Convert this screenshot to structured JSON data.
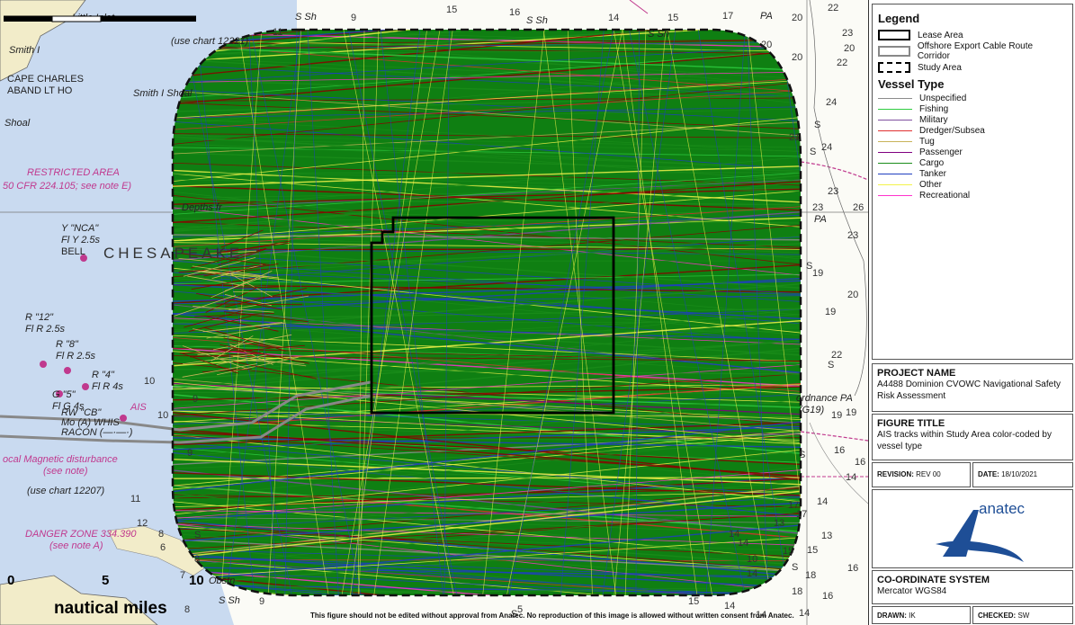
{
  "map": {
    "place_labels": [
      {
        "text": "Little Inlet",
        "cls": "it"
      },
      {
        "text": "Smith I",
        "cls": "it"
      },
      {
        "text": "(use chart 12221)",
        "cls": "it"
      },
      {
        "text": "CAPE CHARLES",
        "cls": ""
      },
      {
        "text": "ABAND LT HO",
        "cls": ""
      },
      {
        "text": "Smith I Shoal",
        "cls": "it"
      },
      {
        "text": "Shoal",
        "cls": "it"
      },
      {
        "text": "RESTRICTED AREA",
        "cls": "mag"
      },
      {
        "text": "50 CFR 224.105; see note E)",
        "cls": "mag"
      },
      {
        "text": "Y \"NCA\"",
        "cls": "it"
      },
      {
        "text": "Fl Y 2.5s",
        "cls": "it"
      },
      {
        "text": "BELL",
        "cls": ""
      },
      {
        "text": "CHESAPEAKE",
        "cls": "big"
      },
      {
        "text": "R \"12\"",
        "cls": "it"
      },
      {
        "text": "Fl R 2.5s",
        "cls": "it"
      },
      {
        "text": "R \"8\"",
        "cls": "it"
      },
      {
        "text": "Fl R 2.5s",
        "cls": "it"
      },
      {
        "text": "R \"4\"",
        "cls": "it"
      },
      {
        "text": "Fl R 4s",
        "cls": "it"
      },
      {
        "text": "G \"5\"",
        "cls": "it"
      },
      {
        "text": "Fl G 4s",
        "cls": "it"
      },
      {
        "text": "RW \"CB\"",
        "cls": "it"
      },
      {
        "text": "Mo (A) WHIS",
        "cls": "it"
      },
      {
        "text": "RACON (—·—·)",
        "cls": "it"
      },
      {
        "text": "AIS",
        "cls": "mag"
      },
      {
        "text": "ocal Magnetic disturbance",
        "cls": "mag"
      },
      {
        "text": "(see note)",
        "cls": "mag"
      },
      {
        "text": "(use chart 12207)",
        "cls": "it"
      },
      {
        "text": "DANGER ZONE 334.390",
        "cls": "mag"
      },
      {
        "text": "(see note A)",
        "cls": "mag"
      },
      {
        "text": "S Sh",
        "cls": "it"
      },
      {
        "text": "S Sh",
        "cls": "it"
      },
      {
        "text": "S Sh",
        "cls": "it"
      },
      {
        "text": "PA",
        "cls": "it"
      },
      {
        "text": "PA",
        "cls": "it"
      },
      {
        "text": "ordnance PA",
        "cls": "it"
      },
      {
        "text": "(G19)",
        "cls": "it"
      },
      {
        "text": "Obstn",
        "cls": "it"
      },
      {
        "text": "S Sh",
        "cls": "it"
      },
      {
        "text": "Depths fr",
        "cls": "it"
      }
    ],
    "depths": [
      "15",
      "16",
      "14",
      "15",
      "17",
      "20",
      "11",
      "9",
      "22",
      "23",
      "20",
      "20",
      "24",
      "21",
      "24",
      "23",
      "26",
      "23",
      "19",
      "20",
      "19",
      "22",
      "17",
      "19",
      "19",
      "16",
      "16",
      "14",
      "17",
      "14",
      "13",
      "15",
      "16",
      "14",
      "18",
      "18",
      "15",
      "13",
      "14",
      "11",
      "10",
      "10",
      "9",
      "9",
      "8",
      "7",
      "6",
      "8",
      "9",
      "15",
      "14",
      "16",
      "14",
      "5",
      "8",
      "14",
      "12",
      "14",
      "10",
      "23",
      "20",
      "22",
      "S",
      "S",
      "S",
      "S",
      "S",
      "S",
      "S",
      "S"
    ],
    "scale": {
      "title": "nautical miles",
      "ticks": [
        "0",
        "5",
        "10"
      ]
    },
    "disclaimer": "This figure should not be edited without approval from Anatec. No reproduction of this image is allowed without written consent from Anatec."
  },
  "legend": {
    "title": "Legend",
    "area_items": [
      {
        "label": "Lease Area",
        "style": "lease"
      },
      {
        "label": "Offshore Export Cable Route Corridor",
        "style": "cable"
      },
      {
        "label": "Study Area",
        "style": "study"
      }
    ],
    "vessel_title": "Vessel Type",
    "vessel_types": [
      {
        "label": "Unspecified",
        "color": "#8c8c8c"
      },
      {
        "label": "Fishing",
        "color": "#2ecc40"
      },
      {
        "label": "Military",
        "color": "#7f4f9f"
      },
      {
        "label": "Dredger/Subsea",
        "color": "#e03030"
      },
      {
        "label": "Tug",
        "color": "#c8b45a"
      },
      {
        "label": "Passenger",
        "color": "#800080"
      },
      {
        "label": "Cargo",
        "color": "#1a8c1a"
      },
      {
        "label": "Tanker",
        "color": "#1f3fbf"
      },
      {
        "label": "Other",
        "color": "#f2f24a"
      },
      {
        "label": "Recreational",
        "color": "#ff33cc"
      }
    ]
  },
  "project": {
    "label": "PROJECT NAME",
    "value": "A4488 Dominion CVOWC Navigational Safety Risk Assessment"
  },
  "figure": {
    "label": "FIGURE TITLE",
    "value": "AIS tracks within Study Area color-coded by vessel type"
  },
  "revision": {
    "label": "REVISION:",
    "value": "REV 00"
  },
  "date": {
    "label": "DATE:",
    "value": "18/10/2021"
  },
  "logo": {
    "text": "anatec",
    "color": "#1e4e96"
  },
  "coords": {
    "label": "CO-ORDINATE SYSTEM",
    "value": "Mercator WGS84"
  },
  "drawn": {
    "label": "DRAWN:",
    "value": "IK"
  },
  "checked": {
    "label": "CHECKED:",
    "value": "SW"
  },
  "colors": {
    "land": "#f2ecc9",
    "water_shallow": "#c9daf0",
    "water": "#fbfbf6",
    "magenta": "#c0398e",
    "track_base": "#0f7f12"
  }
}
